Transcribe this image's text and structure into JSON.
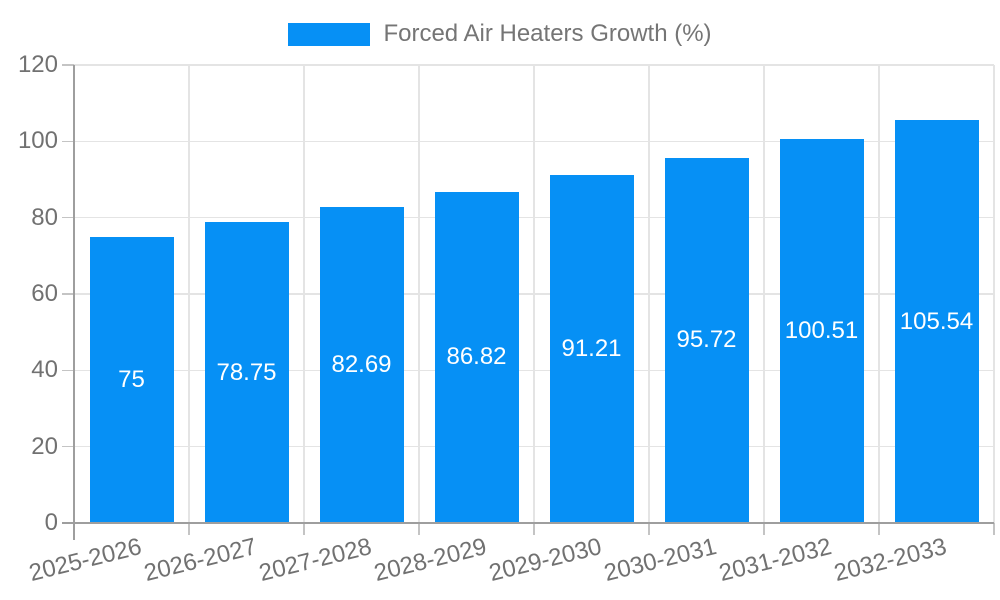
{
  "legend": {
    "series_label": "Forced Air Heaters Growth (%)"
  },
  "chart_data": {
    "type": "bar",
    "title": "Forced Air Heaters Growth (%)",
    "series_name": "Forced Air Heaters Growth (%)",
    "categories": [
      "2025-2026",
      "2026-2027",
      "2027-2028",
      "2028-2029",
      "2029-2030",
      "2030-2031",
      "2031-2032",
      "2032-2033"
    ],
    "values": [
      75,
      78.75,
      82.69,
      86.82,
      91.21,
      95.72,
      100.51,
      105.54
    ],
    "value_labels": [
      "75",
      "78.75",
      "82.69",
      "86.82",
      "91.21",
      "95.72",
      "100.51",
      "105.54"
    ],
    "ylim": [
      0,
      120
    ],
    "yticks": [
      0,
      20,
      40,
      60,
      80,
      100,
      120
    ],
    "xlabel": "",
    "ylabel": "",
    "grid": true,
    "legend_position": "top",
    "x_tick_rotation_deg": -14,
    "colors": {
      "bar": "#0690f5",
      "grid": "#e4e4e4",
      "axis": "#9e9e9e",
      "tick": "#c4c4c4",
      "text": "#717171",
      "value_label": "#ffffff",
      "background": "#ffffff"
    }
  }
}
